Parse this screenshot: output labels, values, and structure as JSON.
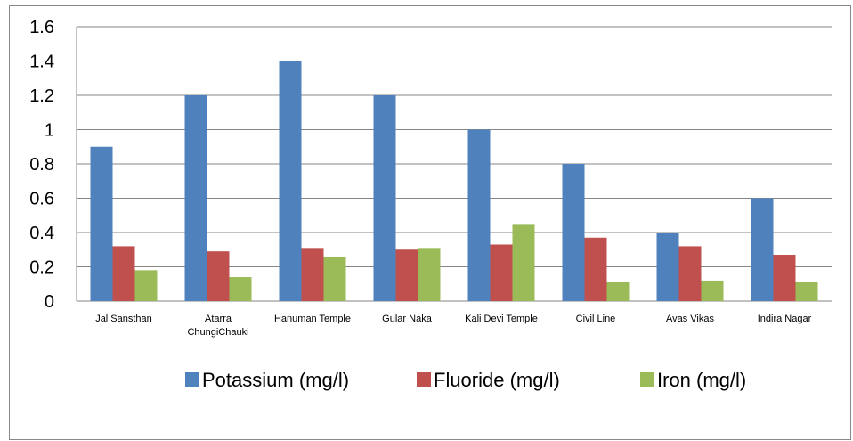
{
  "chart_data": {
    "type": "bar",
    "categories": [
      "Jal Sansthan",
      "Atarra ChungiChauki",
      "Hanuman Temple",
      "Gular Naka",
      "Kali Devi Temple",
      "Civil Line",
      "Avas Vikas",
      "Indira  Nagar"
    ],
    "category_lines": [
      [
        "Jal Sansthan"
      ],
      [
        "Atarra",
        "ChungiChauki"
      ],
      [
        "Hanuman Temple"
      ],
      [
        "Gular Naka"
      ],
      [
        "Kali Devi Temple"
      ],
      [
        "Civil Line"
      ],
      [
        "Avas Vikas"
      ],
      [
        "Indira  Nagar"
      ]
    ],
    "series": [
      {
        "name": "Potassium (mg/l)",
        "color": "#4F81BD",
        "values": [
          0.9,
          1.2,
          1.4,
          1.2,
          1.0,
          0.8,
          0.4,
          0.6
        ]
      },
      {
        "name": "Fluoride (mg/l)",
        "color": "#C0504D",
        "values": [
          0.32,
          0.29,
          0.31,
          0.3,
          0.33,
          0.37,
          0.32,
          0.27
        ]
      },
      {
        "name": "Iron (mg/l)",
        "color": "#9BBB59",
        "values": [
          0.18,
          0.14,
          0.26,
          0.31,
          0.45,
          0.11,
          0.12,
          0.11
        ]
      }
    ],
    "ylim": [
      0,
      1.6
    ],
    "yticks": [
      "0",
      "0.2",
      "0.4",
      "0.6",
      "0.8",
      "1",
      "1.2",
      "1.4",
      "1.6"
    ],
    "grid": true,
    "legend_position": "bottom",
    "title": "",
    "xlabel": "",
    "ylabel": ""
  }
}
